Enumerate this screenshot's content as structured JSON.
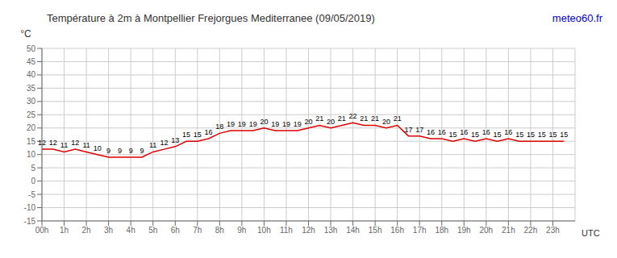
{
  "chart_data": {
    "type": "line",
    "title": "Température à 2m à Montpellier Frejorgues Mediterranee (09/05/2019)",
    "xlabel": "UTC",
    "ylabel": "°C",
    "annotations": [
      {
        "text": "meteo60.fr",
        "color": "#0000cc"
      }
    ],
    "x": [
      0,
      0.5,
      1,
      1.5,
      2,
      2.5,
      3,
      3.5,
      4,
      4.5,
      5,
      5.5,
      6,
      6.5,
      7,
      7.5,
      8,
      8.5,
      9,
      9.5,
      10,
      10.5,
      11,
      11.5,
      12,
      12.5,
      13,
      13.5,
      14,
      14.5,
      15,
      15.5,
      16,
      16.5,
      17,
      17.5,
      18,
      18.5,
      19,
      19.5,
      20,
      20.5,
      21,
      21.5,
      22,
      22.5,
      23,
      23.5
    ],
    "values": [
      12,
      12,
      11,
      12,
      11,
      10,
      9,
      9,
      9,
      9,
      11,
      12,
      13,
      15,
      15,
      16,
      18,
      19,
      19,
      19,
      20,
      19,
      19,
      19,
      20,
      21,
      20,
      21,
      22,
      21,
      21,
      20,
      21,
      17,
      17,
      16,
      16,
      15,
      16,
      15,
      16,
      15,
      16,
      15,
      15,
      15,
      15,
      15
    ],
    "color": "#dd0000",
    "xlim": [
      0,
      24
    ],
    "xticks": [
      {
        "value": 0,
        "label": "00h"
      },
      {
        "value": 1,
        "label": "1h"
      },
      {
        "value": 2,
        "label": "2h"
      },
      {
        "value": 3,
        "label": "3h"
      },
      {
        "value": 4,
        "label": "4h"
      },
      {
        "value": 5,
        "label": "5h"
      },
      {
        "value": 6,
        "label": "6h"
      },
      {
        "value": 7,
        "label": "7h"
      },
      {
        "value": 8,
        "label": "8h"
      },
      {
        "value": 9,
        "label": "9h"
      },
      {
        "value": 10,
        "label": "10h"
      },
      {
        "value": 11,
        "label": "11h"
      },
      {
        "value": 12,
        "label": "12h"
      },
      {
        "value": 13,
        "label": "13h"
      },
      {
        "value": 14,
        "label": "14h"
      },
      {
        "value": 15,
        "label": "15h"
      },
      {
        "value": 16,
        "label": "16h"
      },
      {
        "value": 17,
        "label": "17h"
      },
      {
        "value": 18,
        "label": "18h"
      },
      {
        "value": 19,
        "label": "19h"
      },
      {
        "value": 20,
        "label": "20h"
      },
      {
        "value": 21,
        "label": "21h"
      },
      {
        "value": 22,
        "label": "22h"
      },
      {
        "value": 23,
        "label": "23h"
      }
    ],
    "ylim": [
      -15,
      50
    ],
    "yticks": [
      -15,
      -10,
      -5,
      0,
      5,
      10,
      15,
      20,
      25,
      30,
      35,
      40,
      45,
      50
    ],
    "grid": true,
    "data_labels": true
  }
}
